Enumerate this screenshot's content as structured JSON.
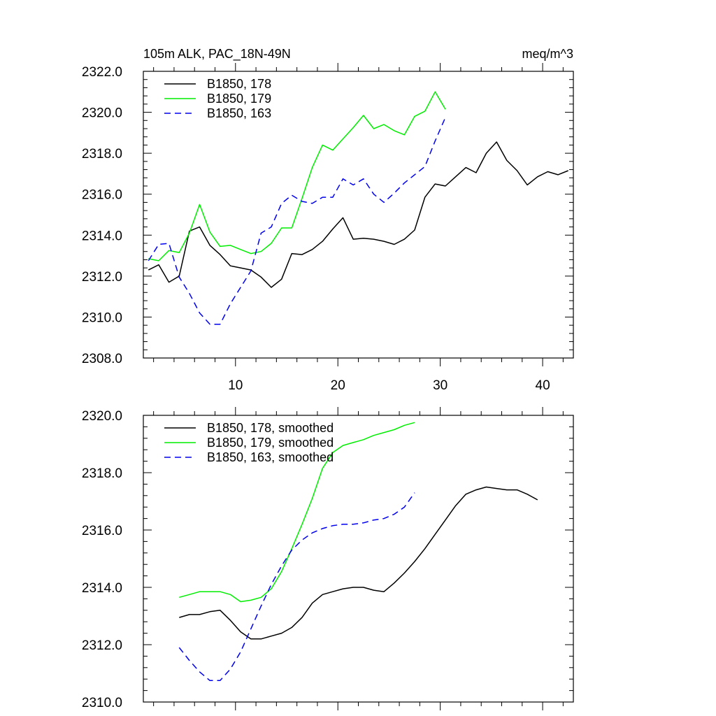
{
  "chart_data": [
    {
      "type": "line",
      "title_left": "105m ALK, PAC_18N-49N",
      "title_right": "meq/m^3",
      "xlim": [
        1,
        43
      ],
      "ylim": [
        2308,
        2322
      ],
      "xticks": [
        10,
        20,
        30,
        40
      ],
      "xtick_labels": [
        "10",
        "20",
        "30",
        "40"
      ],
      "yticks": [
        2308,
        2310,
        2312,
        2314,
        2316,
        2318,
        2320,
        2322
      ],
      "ytick_labels": [
        "2308.0",
        "2310.0",
        "2312.0",
        "2314.0",
        "2316.0",
        "2318.0",
        "2320.0",
        "2322.0"
      ],
      "legend_position": "top-left",
      "series": [
        {
          "name": "B1850, 178",
          "color": "#000000",
          "dash": "solid",
          "x": [
            1.5,
            2.5,
            3.5,
            4.5,
            5.5,
            6.5,
            7.5,
            8.5,
            9.5,
            10.5,
            11.5,
            12.5,
            13.5,
            14.5,
            15.5,
            16.5,
            17.5,
            18.5,
            19.5,
            20.5,
            21.5,
            22.5,
            23.5,
            24.5,
            25.5,
            26.5,
            27.5,
            28.5,
            29.5,
            30.5,
            31.5,
            32.5,
            33.5,
            34.5,
            35.5,
            36.5,
            37.5,
            38.5,
            39.5,
            40.5,
            41.5,
            42.5
          ],
          "values": [
            2312.3,
            2312.55,
            2311.7,
            2312.0,
            2314.2,
            2314.4,
            2313.5,
            2313.05,
            2312.5,
            2312.4,
            2312.3,
            2311.95,
            2311.45,
            2311.85,
            2313.1,
            2313.05,
            2313.3,
            2313.7,
            2314.3,
            2314.85,
            2313.8,
            2313.85,
            2313.8,
            2313.7,
            2313.55,
            2313.8,
            2314.25,
            2315.85,
            2316.5,
            2316.4,
            2316.85,
            2317.3,
            2317.05,
            2318.0,
            2318.55,
            2317.65,
            2317.15,
            2316.45,
            2316.85,
            2317.1,
            2316.95,
            2317.15
          ]
        },
        {
          "name": "B1850, 179",
          "color": "#00ee00",
          "dash": "solid",
          "x": [
            1.5,
            2.5,
            3.5,
            4.5,
            5.5,
            6.5,
            7.5,
            8.5,
            9.5,
            10.5,
            11.5,
            12.5,
            13.5,
            14.5,
            15.5,
            16.5,
            17.5,
            18.5,
            19.5,
            20.5,
            21.5,
            22.5,
            23.5,
            24.5,
            25.5,
            26.5,
            27.5,
            28.5,
            29.5,
            30.5
          ],
          "values": [
            2312.85,
            2312.75,
            2313.25,
            2313.15,
            2314.1,
            2315.5,
            2314.15,
            2313.45,
            2313.5,
            2313.3,
            2313.1,
            2313.2,
            2313.6,
            2314.35,
            2314.35,
            2315.8,
            2317.3,
            2318.4,
            2318.15,
            2318.7,
            2319.25,
            2319.85,
            2319.2,
            2319.4,
            2319.1,
            2318.9,
            2319.8,
            2320.05,
            2321.0,
            2320.15
          ]
        },
        {
          "name": "B1850, 163",
          "color": "#0000ee",
          "dash": "dashed",
          "x": [
            1.5,
            2.5,
            3.5,
            4.5,
            5.5,
            6.5,
            7.5,
            8.5,
            9.5,
            10.5,
            11.5,
            12.5,
            13.5,
            14.5,
            15.5,
            16.5,
            17.5,
            18.5,
            19.5,
            20.5,
            21.5,
            22.5,
            23.5,
            24.5,
            25.5,
            26.5,
            27.5,
            28.5,
            29.5,
            30.5
          ],
          "values": [
            2312.75,
            2313.55,
            2313.6,
            2311.95,
            2311.15,
            2310.2,
            2309.65,
            2309.65,
            2310.65,
            2311.45,
            2312.25,
            2314.1,
            2314.4,
            2315.55,
            2315.95,
            2315.65,
            2315.55,
            2315.85,
            2315.85,
            2316.75,
            2316.45,
            2316.75,
            2316.0,
            2315.6,
            2316.05,
            2316.55,
            2316.95,
            2317.35,
            2318.6,
            2319.75
          ]
        }
      ]
    },
    {
      "type": "line",
      "xlim": [
        1,
        43
      ],
      "ylim": [
        2310,
        2320
      ],
      "xticks": [
        10,
        20,
        30,
        40
      ],
      "xtick_labels": [],
      "yticks": [
        2310,
        2312,
        2314,
        2316,
        2318,
        2320
      ],
      "ytick_labels": [
        "2310.0",
        "2312.0",
        "2314.0",
        "2316.0",
        "2318.0",
        "2320.0"
      ],
      "legend_position": "top-left",
      "series": [
        {
          "name": "B1850, 178, smoothed",
          "color": "#000000",
          "dash": "solid",
          "x": [
            4.5,
            5.5,
            6.5,
            7.5,
            8.5,
            9.5,
            10.5,
            11.5,
            12.5,
            13.5,
            14.5,
            15.5,
            16.5,
            17.5,
            18.5,
            19.5,
            20.5,
            21.5,
            22.5,
            23.5,
            24.5,
            25.5,
            26.5,
            27.5,
            28.5,
            29.5,
            30.5,
            31.5,
            32.5,
            33.5,
            34.5,
            35.5,
            36.5,
            37.5,
            38.5,
            39.5
          ],
          "values": [
            2312.95,
            2313.05,
            2313.05,
            2313.15,
            2313.2,
            2312.85,
            2312.45,
            2312.2,
            2312.2,
            2312.3,
            2312.4,
            2312.6,
            2312.95,
            2313.45,
            2313.75,
            2313.85,
            2313.95,
            2314.0,
            2314.0,
            2313.9,
            2313.85,
            2314.15,
            2314.5,
            2314.9,
            2315.35,
            2315.85,
            2316.35,
            2316.85,
            2317.25,
            2317.4,
            2317.5,
            2317.45,
            2317.4,
            2317.4,
            2317.25,
            2317.05
          ]
        },
        {
          "name": "B1850, 179, smoothed",
          "color": "#00ee00",
          "dash": "solid",
          "x": [
            4.5,
            5.5,
            6.5,
            7.5,
            8.5,
            9.5,
            10.5,
            11.5,
            12.5,
            13.5,
            14.5,
            15.5,
            16.5,
            17.5,
            18.5,
            19.5,
            20.5,
            21.5,
            22.5,
            23.5,
            24.5,
            25.5,
            26.5,
            27.5
          ],
          "values": [
            2313.65,
            2313.75,
            2313.85,
            2313.85,
            2313.85,
            2313.75,
            2313.5,
            2313.55,
            2313.65,
            2313.95,
            2314.55,
            2315.35,
            2316.2,
            2317.1,
            2318.15,
            2318.7,
            2318.95,
            2319.05,
            2319.15,
            2319.3,
            2319.4,
            2319.5,
            2319.65,
            2319.75
          ]
        },
        {
          "name": "B1850, 163, smoothed",
          "color": "#0000ee",
          "dash": "dashed",
          "x": [
            4.5,
            5.5,
            6.5,
            7.5,
            8.5,
            9.5,
            10.5,
            11.5,
            12.5,
            13.5,
            14.5,
            15.5,
            16.5,
            17.5,
            18.5,
            19.5,
            20.5,
            21.5,
            22.5,
            23.5,
            24.5,
            25.5,
            26.5,
            27.5
          ],
          "values": [
            2311.9,
            2311.45,
            2311.05,
            2310.75,
            2310.75,
            2311.15,
            2311.75,
            2312.55,
            2313.35,
            2314.1,
            2314.75,
            2315.3,
            2315.65,
            2315.9,
            2316.05,
            2316.15,
            2316.2,
            2316.2,
            2316.25,
            2316.35,
            2316.4,
            2316.55,
            2316.8,
            2317.3
          ]
        }
      ]
    }
  ]
}
